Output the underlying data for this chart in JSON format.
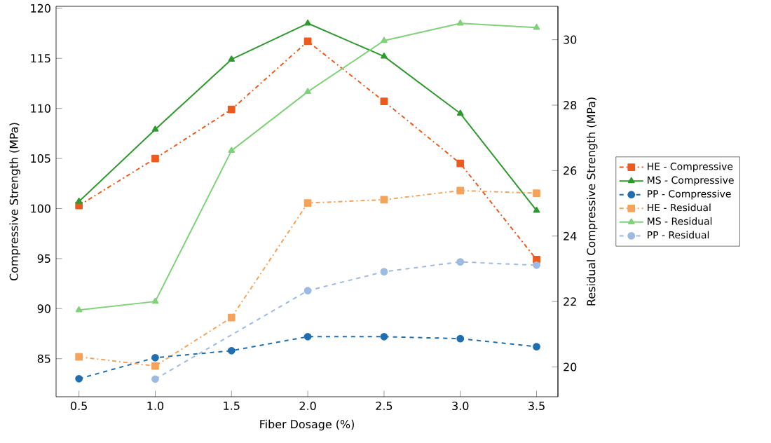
{
  "chart_data": {
    "type": "line",
    "xlabel": "Fiber Dosage (%)",
    "ylabel": "Compressive Strength (MPa)",
    "y2label": "Residual Compressive Strength (MPa)",
    "x": [
      0.5,
      1.0,
      1.5,
      2.0,
      2.5,
      3.0,
      3.5
    ],
    "xlim": [
      0.35,
      3.64
    ],
    "xticks": [
      0.5,
      {
        "value": 1.0,
        "label": "1.0"
      },
      1.5,
      {
        "value": 2.0,
        "label": "2.0"
      },
      2.5,
      {
        "value": 3.0,
        "label": "3.0"
      },
      3.5
    ],
    "ylim": [
      81.2,
      120.2
    ],
    "yticks": [
      85,
      90,
      95,
      100,
      105,
      110,
      115,
      120
    ],
    "y2lim": [
      19.09,
      31.02
    ],
    "y2ticks": [
      20,
      22,
      24,
      26,
      28,
      30
    ],
    "legend": "right",
    "grid": false,
    "series": [
      {
        "name": "HE - Compressive",
        "color": "#ee5a1c",
        "marker": "square",
        "line_style": "dashdot",
        "values": [
          100.3,
          105.0,
          109.9,
          116.7,
          110.7,
          104.5,
          94.9
        ]
      },
      {
        "name": "MS - Compressive",
        "color": "#2e9a2e",
        "marker": "triangle",
        "line_style": "solid",
        "values": [
          100.7,
          107.9,
          114.9,
          118.5,
          115.2,
          109.5,
          99.8
        ]
      },
      {
        "name": "PP - Compressive",
        "color": "#1f6fb0",
        "marker": "circle",
        "line_style": "dashed",
        "values": [
          83.0,
          85.1,
          85.8,
          87.2,
          87.2,
          87.0,
          86.2
        ]
      },
      {
        "name": "HE - Residual",
        "color": "#f5a35a",
        "marker": "square",
        "line_style": "dashdot",
        "axis": "y2",
        "values": [
          20.31,
          20.03,
          21.51,
          25.01,
          25.11,
          25.39,
          25.31
        ]
      },
      {
        "name": "MS - Residual",
        "color": "#80d27a",
        "marker": "triangle",
        "line_style": "solid",
        "axis": "y2",
        "values": [
          21.74,
          22.0,
          26.61,
          28.41,
          29.97,
          30.5,
          30.37
        ]
      },
      {
        "name": "PP - Residual",
        "color": "#9dbbe2",
        "marker": "circle",
        "line_style": "dashed",
        "axis": "y2",
        "x": [
          1.0,
          2.0,
          2.5,
          3.0,
          3.5
        ],
        "values": [
          19.63,
          22.33,
          22.91,
          23.21,
          23.11
        ]
      }
    ]
  }
}
